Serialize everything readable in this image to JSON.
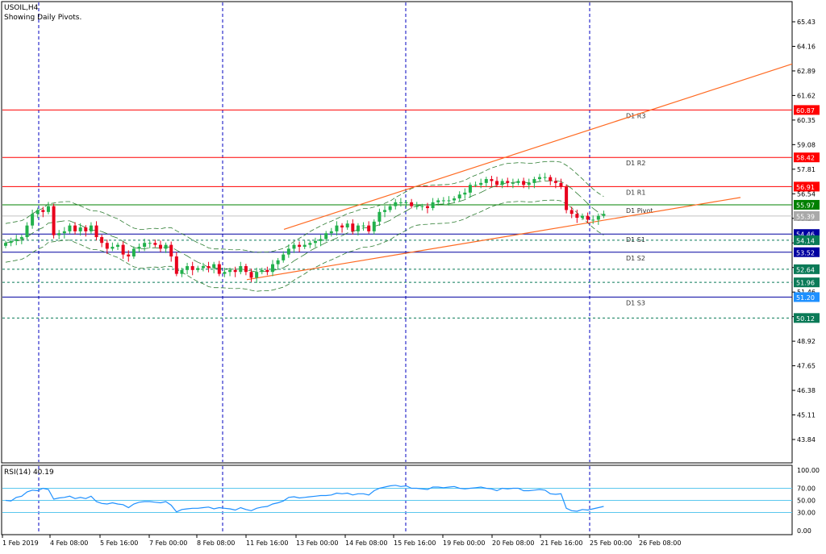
{
  "symbol_label": "USOIL,H4",
  "info_label": "Showing Daily Pivots.",
  "rsi_label": "RSI(14) 40.19",
  "colors": {
    "up_candle": "#22b14c",
    "down_candle": "#e8001c",
    "resistance": "#ff0000",
    "support": "#0000a0",
    "pivot": "#008000",
    "channel": "#ff6a22",
    "band": "#2e7d32",
    "dotted": "#0a7a57",
    "rsi_line": "#1e90ff",
    "rsi_level": "#5bc8ee",
    "grid_vertical": "#0000c0"
  },
  "chart_data": [
    {
      "type": "candlestick",
      "symbol": "USOIL",
      "timeframe": "H4",
      "price_axis_ticks": [
        "65.43",
        "64.16",
        "62.89",
        "61.62",
        "60.35",
        "59.08",
        "57.81",
        "56.54",
        "55.27",
        "54.00",
        "52.73",
        "51.46",
        "50.19",
        "48.92",
        "47.65",
        "46.38",
        "45.11",
        "43.84"
      ],
      "time_axis_labels": [
        "1 Feb 2019",
        "4 Feb 08:00",
        "5 Feb 16:00",
        "7 Feb 00:00",
        "8 Feb 08:00",
        "11 Feb 16:00",
        "13 Feb 00:00",
        "14 Feb 08:00",
        "15 Feb 16:00",
        "19 Feb 00:00",
        "20 Feb 08:00",
        "21 Feb 16:00",
        "25 Feb 00:00",
        "26 Feb 08:00"
      ],
      "ylim": [
        42.7,
        66.1
      ],
      "grid": "vertical dashed separators at day breaks",
      "closes": [
        54.0,
        54.1,
        54.2,
        54.3,
        54.9,
        55.5,
        55.7,
        55.6,
        55.9,
        54.4,
        54.5,
        54.6,
        54.9,
        54.6,
        54.8,
        54.6,
        54.9,
        54.3,
        54.0,
        53.7,
        53.8,
        53.9,
        53.4,
        53.3,
        53.7,
        53.8,
        54.0,
        54.0,
        53.9,
        53.7,
        53.9,
        53.3,
        52.4,
        52.6,
        52.8,
        52.6,
        52.7,
        52.8,
        52.7,
        52.9,
        52.4,
        52.5,
        52.6,
        52.5,
        52.8,
        52.5,
        52.2,
        52.5,
        52.6,
        52.5,
        52.9,
        53.1,
        53.4,
        53.7,
        53.9,
        53.8,
        53.9,
        54.0,
        54.1,
        54.2,
        54.5,
        54.6,
        54.9,
        54.8,
        55.0,
        54.6,
        54.9,
        54.9,
        54.6,
        55.1,
        55.6,
        55.7,
        55.9,
        56.1,
        56.1,
        56.1,
        55.9,
        55.9,
        55.9,
        55.8,
        56.1,
        56.2,
        56.2,
        56.2,
        56.3,
        56.5,
        56.6,
        57.0,
        57.0,
        57.1,
        57.3,
        57.2,
        57.0,
        57.2,
        57.1,
        57.1,
        57.2,
        57.0,
        57.1,
        57.3,
        57.4,
        57.4,
        57.2,
        57.1,
        56.9,
        55.7,
        55.5,
        55.3,
        55.4,
        55.2,
        55.2,
        55.4,
        55.5
      ],
      "levels": [
        {
          "label": "D1 R3",
          "value": "60.87"
        },
        {
          "label": "D1 R2",
          "value": "58.42"
        },
        {
          "label": "D1 R1",
          "value": "56.91"
        },
        {
          "label": "D1 Pivot",
          "value": "55.97"
        },
        {
          "label": "D1 S1",
          "value": "54.46"
        },
        {
          "label": "D1 S2",
          "value": "53.52"
        },
        {
          "label": "D1 S3",
          "value": "51.20"
        }
      ],
      "extra_price_tags": [
        "55.39",
        "54.14",
        "52.64",
        "51.96",
        "50.12"
      ],
      "channel": "ascending channel from 11 Feb 16:00 extended past 26 Feb 08:00",
      "envelope": "dashed moving-average band around price"
    },
    {
      "type": "line",
      "indicator": "RSI(14)",
      "current_value": 40.19,
      "ylim": [
        0,
        100
      ],
      "levels": [
        30,
        50,
        70
      ],
      "axis_ticks": [
        "100.00",
        "70.00",
        "50.00",
        "30.00",
        "0.00"
      ],
      "values": [
        50,
        49,
        55,
        57,
        64,
        67,
        66,
        70,
        68,
        52,
        54,
        55,
        57,
        53,
        55,
        53,
        57,
        48,
        45,
        44,
        46,
        44,
        43,
        38,
        44,
        47,
        48,
        48,
        47,
        46,
        48,
        42,
        31,
        35,
        36,
        37,
        37,
        38,
        39,
        36,
        38,
        37,
        36,
        34,
        38,
        35,
        33,
        37,
        39,
        40,
        44,
        46,
        49,
        55,
        56,
        54,
        55,
        56,
        57,
        58,
        58,
        59,
        62,
        61,
        62,
        59,
        61,
        61,
        59,
        66,
        70,
        72,
        74,
        75,
        73,
        74,
        70,
        70,
        69,
        68,
        72,
        72,
        71,
        72,
        73,
        70,
        69,
        70,
        71,
        72,
        70,
        69,
        66,
        70,
        69,
        70,
        70,
        66,
        66,
        67,
        68,
        67,
        61,
        60,
        61,
        37,
        33,
        32,
        35,
        34,
        36,
        38,
        40
      ]
    }
  ]
}
